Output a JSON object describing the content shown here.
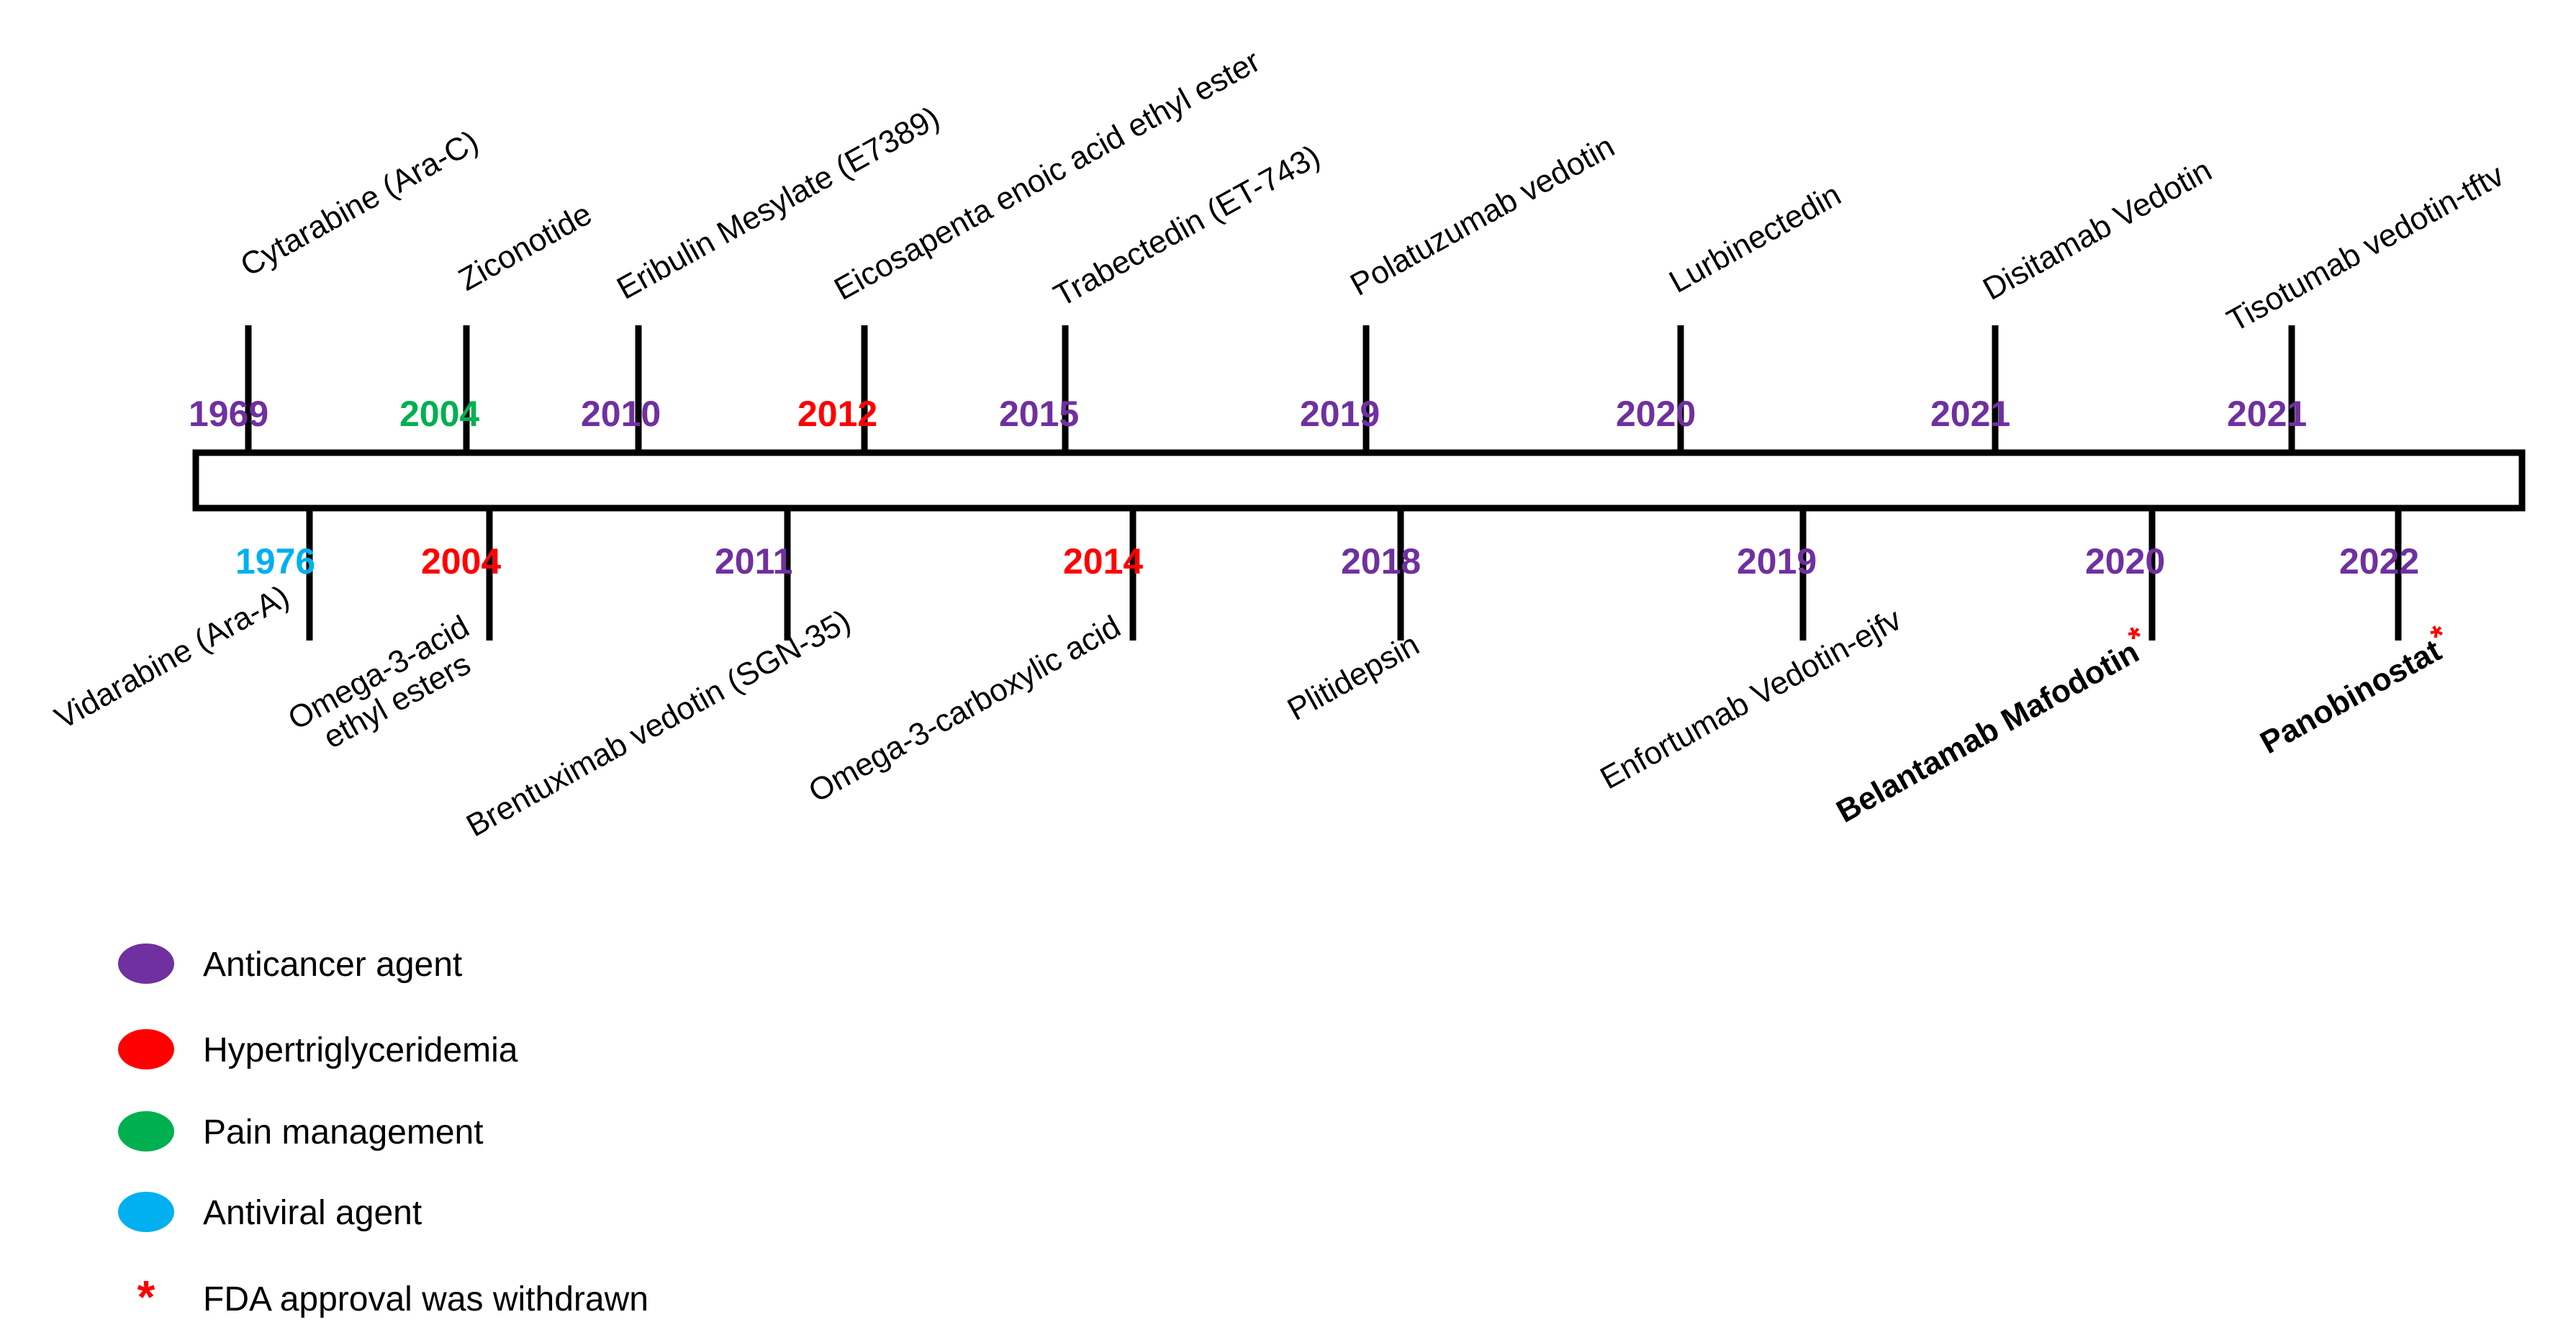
{
  "colors": {
    "anticancer": "#7030a0",
    "hypertriglyceridemia": "#ff0000",
    "pain": "#00b050",
    "antiviral": "#00b0f0",
    "text": "#000000",
    "withdrawn": "#ff0000"
  },
  "timeline": {
    "above": [
      {
        "year": "1969",
        "category": "anticancer",
        "drug": "Cytarabine (Ara-C)"
      },
      {
        "year": "2004",
        "category": "pain",
        "drug": "Ziconotide"
      },
      {
        "year": "2010",
        "category": "anticancer",
        "drug": "Eribulin Mesylate (E7389)"
      },
      {
        "year": "2012",
        "category": "hypertriglyceridemia",
        "drug": "Eicosapenta enoic acid ethyl ester"
      },
      {
        "year": "2015",
        "category": "anticancer",
        "drug": "Trabectedin (ET-743)"
      },
      {
        "year": "2019",
        "category": "anticancer",
        "drug": "Polatuzumab vedotin"
      },
      {
        "year": "2020",
        "category": "anticancer",
        "drug": "Lurbinectedin"
      },
      {
        "year": "2021",
        "category": "anticancer",
        "drug": "Disitamab Vedotin"
      },
      {
        "year": "2021",
        "category": "anticancer",
        "drug": "Tisotumab vedotin-tftv"
      }
    ],
    "below": [
      {
        "year": "1976",
        "category": "antiviral",
        "drug": "Vidarabine (Ara-A)"
      },
      {
        "year": "2004",
        "category": "hypertriglyceridemia",
        "drug_lines": [
          "Omega-3-acid",
          "ethyl esters"
        ]
      },
      {
        "year": "2011",
        "category": "anticancer",
        "drug": "Brentuximab vedotin (SGN-35)"
      },
      {
        "year": "2014",
        "category": "hypertriglyceridemia",
        "drug": "Omega-3-carboxylic acid"
      },
      {
        "year": "2018",
        "category": "anticancer",
        "drug": "Plitidepsin"
      },
      {
        "year": "2019",
        "category": "anticancer",
        "drug": "Enfortumab Vedotin-ejfv"
      },
      {
        "year": "2020",
        "category": "anticancer",
        "drug": "Belantamab Mafodotin",
        "withdrawn": true
      },
      {
        "year": "2022",
        "category": "anticancer",
        "drug": "Panobinostat",
        "withdrawn": true
      }
    ]
  },
  "asterisk": "*",
  "legend": [
    {
      "category": "anticancer",
      "label": "Anticancer agent"
    },
    {
      "category": "hypertriglyceridemia",
      "label": "Hypertriglyceridemia"
    },
    {
      "category": "pain",
      "label": "Pain management"
    },
    {
      "category": "antiviral",
      "label": "Antiviral agent"
    },
    {
      "marker": "asterisk",
      "label": "FDA approval was withdrawn"
    }
  ]
}
